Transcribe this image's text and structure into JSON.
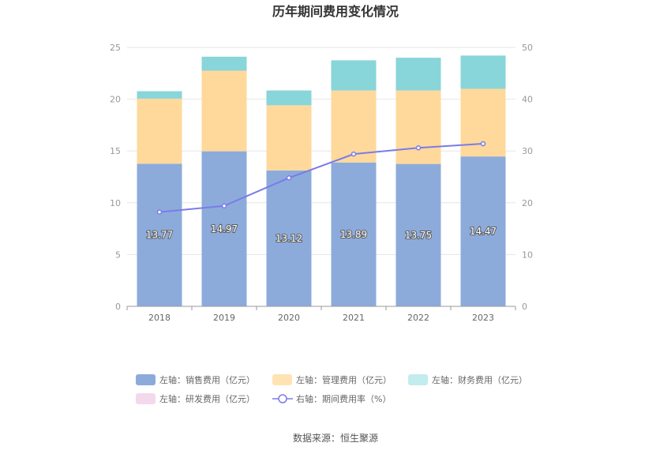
{
  "chart_data": {
    "type": "bar",
    "title": "历年期间费用变化情况",
    "categories": [
      "2018",
      "2019",
      "2020",
      "2021",
      "2022",
      "2023"
    ],
    "y_left": {
      "min": 0,
      "max": 25,
      "ticks": [
        "0",
        "5",
        "10",
        "15",
        "20",
        "25"
      ]
    },
    "y_right": {
      "min": 0,
      "max": 50,
      "ticks": [
        "0",
        "10",
        "20",
        "30",
        "40",
        "50"
      ]
    },
    "grid": true,
    "legend_position": "bottom",
    "series": [
      {
        "name": "左轴：销售费用（亿元）",
        "kind": "bar",
        "axis": "left",
        "color": "#8cabdb",
        "values": [
          13.77,
          14.97,
          13.12,
          13.89,
          13.75,
          14.47
        ],
        "labels": [
          "13.77",
          "14.97",
          "13.12",
          "13.89",
          "13.75",
          "14.47"
        ]
      },
      {
        "name": "左轴：管理费用（亿元）",
        "kind": "bar",
        "axis": "left",
        "color": "#ffd99b",
        "values": [
          6.28,
          7.78,
          6.29,
          6.95,
          7.09,
          6.53
        ]
      },
      {
        "name": "左轴：财务费用（亿元）",
        "kind": "bar",
        "axis": "left",
        "color": "#88d5da",
        "values": [
          0.72,
          1.35,
          1.43,
          2.91,
          3.16,
          3.21
        ]
      },
      {
        "name": "左轴：研发费用（亿元）",
        "kind": "bar",
        "axis": "left",
        "color": "#f3d9ec",
        "values": [
          0,
          0,
          0,
          0,
          0,
          0
        ]
      },
      {
        "name": "右轴：期间费用率（%）",
        "kind": "line",
        "axis": "right",
        "color": "#7b7be8",
        "values": [
          18.2,
          19.4,
          24.8,
          29.4,
          30.6,
          31.4
        ]
      }
    ]
  },
  "source_text": "数据来源：恒生聚源"
}
